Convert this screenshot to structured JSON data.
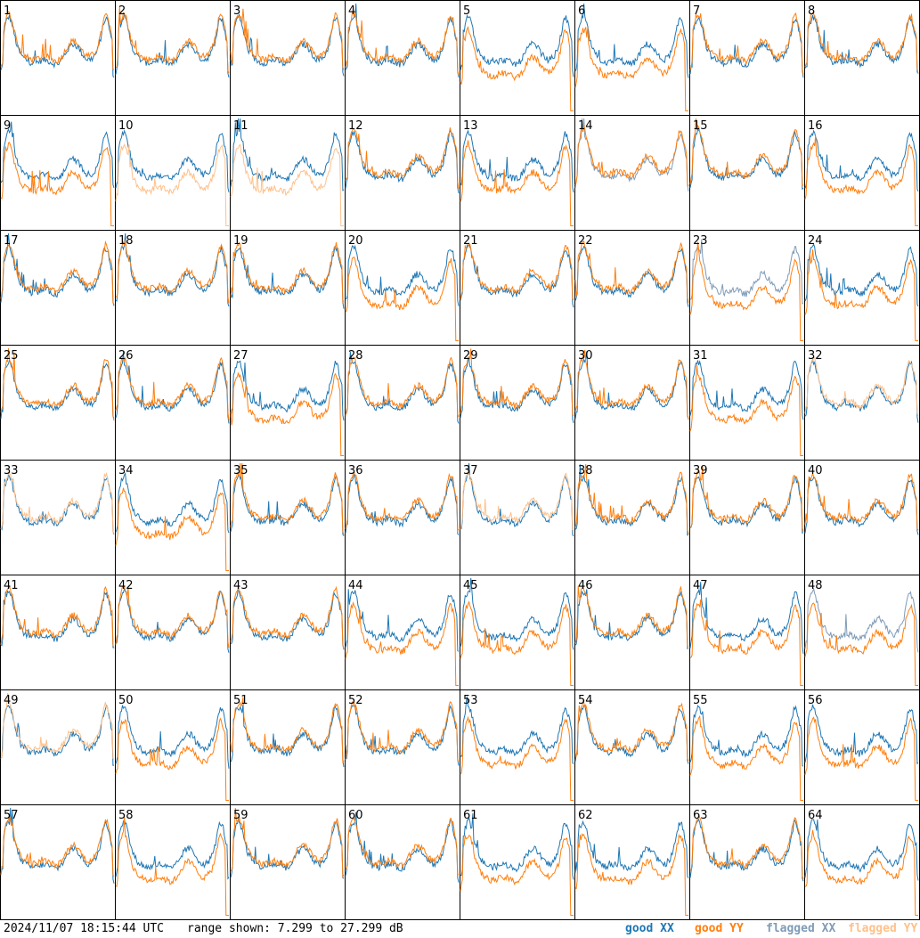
{
  "chart_data": {
    "type": "line",
    "layout": "8x8 small multiples",
    "panels": [
      "1",
      "2",
      "3",
      "4",
      "5",
      "6",
      "7",
      "8",
      "9",
      "10",
      "11",
      "12",
      "13",
      "14",
      "15",
      "16",
      "17",
      "18",
      "19",
      "20",
      "21",
      "22",
      "23",
      "24",
      "25",
      "26",
      "27",
      "28",
      "29",
      "30",
      "31",
      "32",
      "33",
      "34",
      "35",
      "36",
      "37",
      "38",
      "39",
      "40",
      "41",
      "42",
      "43",
      "44",
      "45",
      "46",
      "47",
      "48",
      "49",
      "50",
      "51",
      "52",
      "53",
      "54",
      "55",
      "56",
      "57",
      "58",
      "59",
      "60",
      "61",
      "62",
      "63",
      "64"
    ],
    "ylim": [
      7.299,
      27.299
    ],
    "yunit": "dB",
    "series": [
      {
        "name": "good XX",
        "color": "#1f77b4"
      },
      {
        "name": "good YY",
        "color": "#ff7f0e"
      },
      {
        "name": "flagged XX",
        "color": "#7f9bb8"
      },
      {
        "name": "flagged YY",
        "color": "#ffc08a"
      }
    ]
  },
  "footer": {
    "timestamp": "2024/11/07 18:15:44 UTC",
    "range_text": "range shown: 7.299 to 27.299 dB"
  }
}
